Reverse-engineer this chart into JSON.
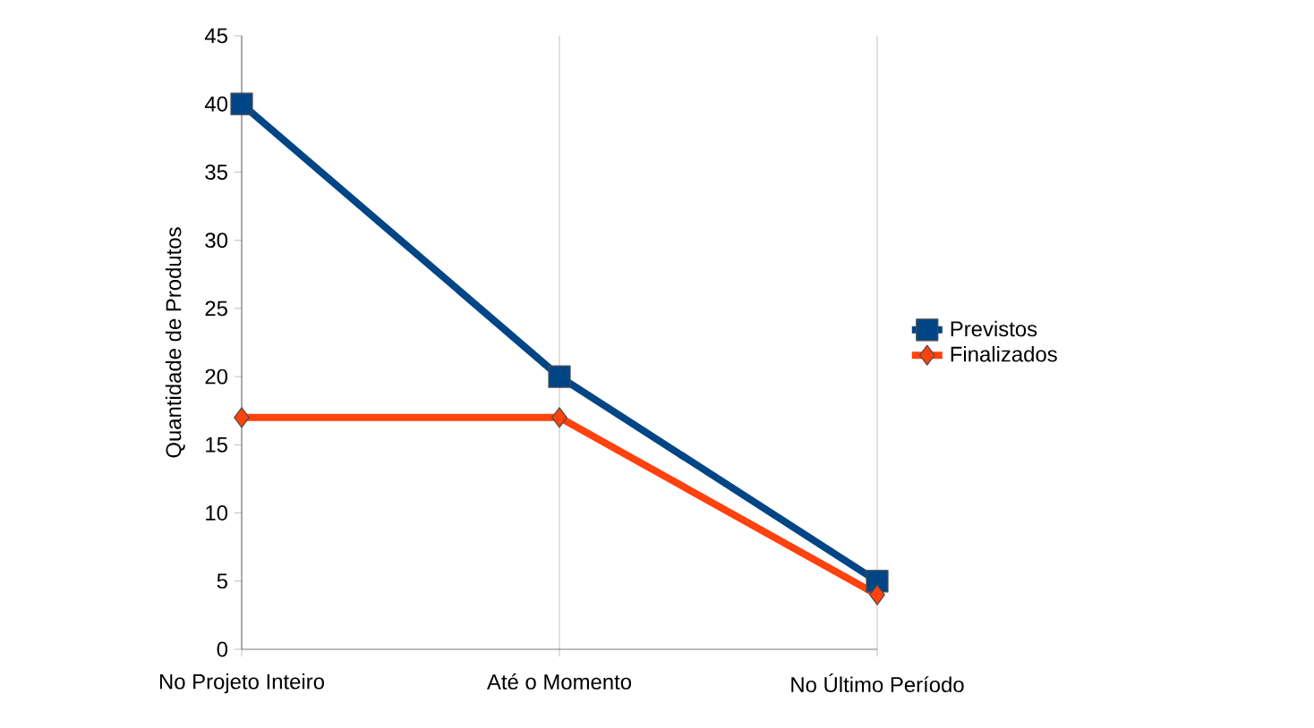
{
  "chart_data": {
    "type": "line",
    "ylabel": "Quantidade de Produtos",
    "categories": [
      "No Projeto Inteiro",
      "Até o Momento",
      "No Último Período"
    ],
    "series": [
      {
        "name": "Previstos",
        "color": "#004586",
        "marker": "square",
        "values": [
          40,
          20,
          5
        ]
      },
      {
        "name": "Finalizados",
        "color": "#ff420e",
        "marker": "diamond",
        "values": [
          17,
          17,
          4
        ]
      }
    ],
    "ylim": [
      0,
      45
    ],
    "yticks": [
      0,
      5,
      10,
      15,
      20,
      25,
      30,
      35,
      40,
      45
    ],
    "grid": "x",
    "legend": "right"
  }
}
